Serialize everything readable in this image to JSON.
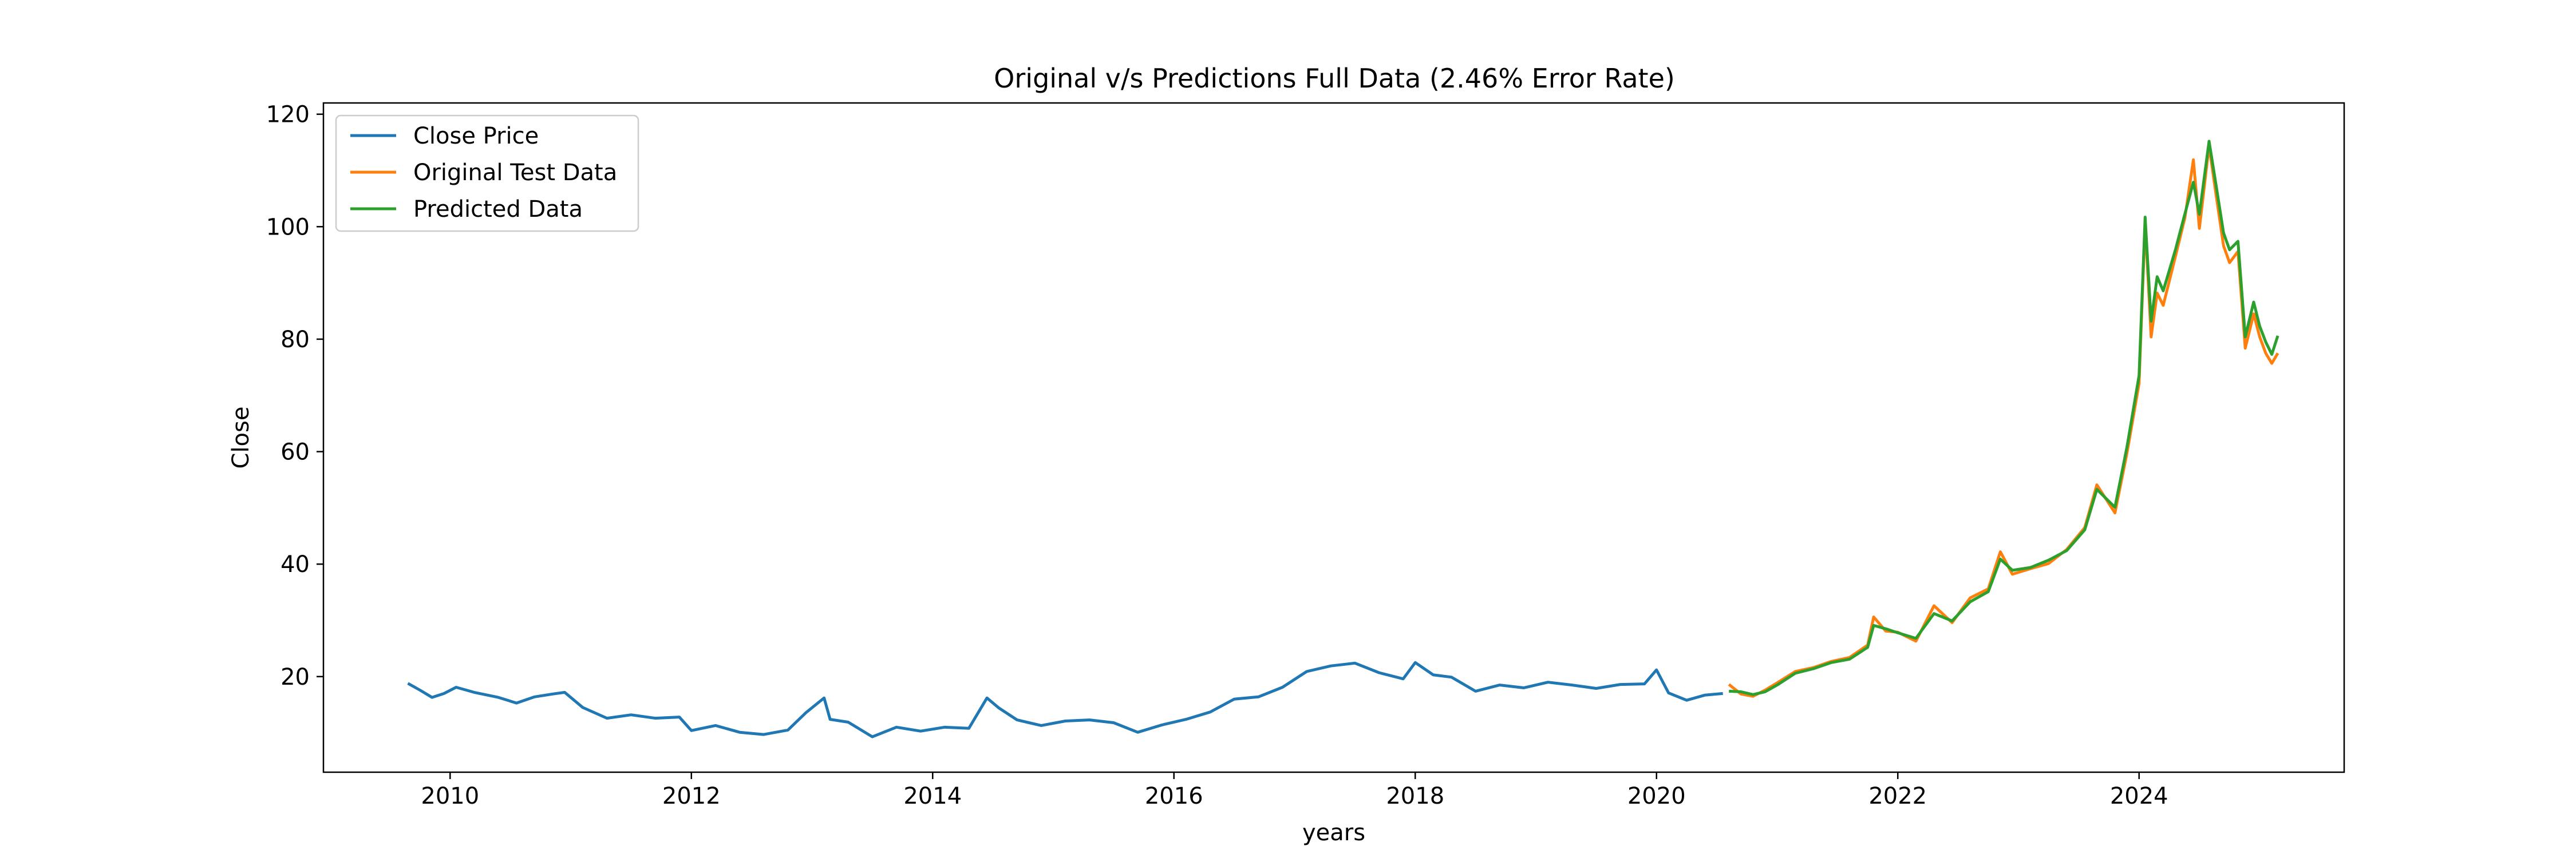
{
  "chart_data": {
    "type": "line",
    "title": "Original v/s Predictions Full Data (2.46% Error Rate)",
    "xlabel": "years",
    "ylabel": "Close",
    "xlim": [
      2008.95,
      2025.7
    ],
    "ylim": [
      3,
      122
    ],
    "x_ticks": [
      2010,
      2012,
      2014,
      2016,
      2018,
      2020,
      2022,
      2024
    ],
    "y_ticks": [
      20,
      40,
      60,
      80,
      100,
      120
    ],
    "grid": false,
    "legend_position": "top-left",
    "series": [
      {
        "name": "Close Price",
        "color": "#1f77b4",
        "points": [
          [
            2009.65,
            18.8
          ],
          [
            2009.75,
            17.6
          ],
          [
            2009.85,
            16.3
          ],
          [
            2009.95,
            17.0
          ],
          [
            2010.05,
            18.1
          ],
          [
            2010.2,
            17.2
          ],
          [
            2010.4,
            16.3
          ],
          [
            2010.55,
            15.3
          ],
          [
            2010.7,
            16.4
          ],
          [
            2010.85,
            16.9
          ],
          [
            2010.95,
            17.2
          ],
          [
            2011.1,
            14.5
          ],
          [
            2011.3,
            12.6
          ],
          [
            2011.5,
            13.2
          ],
          [
            2011.7,
            12.6
          ],
          [
            2011.9,
            12.8
          ],
          [
            2012.0,
            10.4
          ],
          [
            2012.2,
            11.3
          ],
          [
            2012.4,
            10.1
          ],
          [
            2012.6,
            9.7
          ],
          [
            2012.8,
            10.5
          ],
          [
            2012.95,
            13.6
          ],
          [
            2013.1,
            16.2
          ],
          [
            2013.15,
            12.4
          ],
          [
            2013.3,
            11.9
          ],
          [
            2013.5,
            9.3
          ],
          [
            2013.7,
            11.0
          ],
          [
            2013.9,
            10.3
          ],
          [
            2014.1,
            11.0
          ],
          [
            2014.3,
            10.8
          ],
          [
            2014.45,
            16.2
          ],
          [
            2014.55,
            14.4
          ],
          [
            2014.7,
            12.3
          ],
          [
            2014.9,
            11.3
          ],
          [
            2015.1,
            12.1
          ],
          [
            2015.3,
            12.3
          ],
          [
            2015.5,
            11.8
          ],
          [
            2015.7,
            10.1
          ],
          [
            2015.9,
            11.4
          ],
          [
            2016.1,
            12.4
          ],
          [
            2016.3,
            13.7
          ],
          [
            2016.5,
            16.0
          ],
          [
            2016.7,
            16.4
          ],
          [
            2016.9,
            18.1
          ],
          [
            2017.1,
            20.9
          ],
          [
            2017.3,
            21.9
          ],
          [
            2017.5,
            22.4
          ],
          [
            2017.7,
            20.7
          ],
          [
            2017.9,
            19.6
          ],
          [
            2018.0,
            22.5
          ],
          [
            2018.15,
            20.3
          ],
          [
            2018.3,
            19.9
          ],
          [
            2018.5,
            17.4
          ],
          [
            2018.7,
            18.5
          ],
          [
            2018.9,
            18.0
          ],
          [
            2019.1,
            19.0
          ],
          [
            2019.3,
            18.5
          ],
          [
            2019.5,
            17.9
          ],
          [
            2019.7,
            18.6
          ],
          [
            2019.9,
            18.7
          ],
          [
            2020.0,
            21.2
          ],
          [
            2020.1,
            17.1
          ],
          [
            2020.25,
            15.8
          ],
          [
            2020.4,
            16.7
          ],
          [
            2020.55,
            17.0
          ]
        ]
      },
      {
        "name": "Original Test Data",
        "color": "#ff7f0e",
        "points": [
          [
            2020.6,
            18.6
          ],
          [
            2020.7,
            16.9
          ],
          [
            2020.8,
            16.5
          ],
          [
            2020.9,
            17.6
          ],
          [
            2021.0,
            18.9
          ],
          [
            2021.15,
            20.9
          ],
          [
            2021.3,
            21.6
          ],
          [
            2021.45,
            22.7
          ],
          [
            2021.6,
            23.4
          ],
          [
            2021.75,
            25.6
          ],
          [
            2021.8,
            30.6
          ],
          [
            2021.9,
            28.1
          ],
          [
            2022.0,
            27.9
          ],
          [
            2022.15,
            26.3
          ],
          [
            2022.3,
            32.6
          ],
          [
            2022.45,
            29.6
          ],
          [
            2022.6,
            34.0
          ],
          [
            2022.75,
            35.6
          ],
          [
            2022.85,
            42.2
          ],
          [
            2022.95,
            38.2
          ],
          [
            2023.1,
            39.2
          ],
          [
            2023.25,
            40.1
          ],
          [
            2023.4,
            42.6
          ],
          [
            2023.55,
            46.5
          ],
          [
            2023.65,
            54.1
          ],
          [
            2023.8,
            49.1
          ],
          [
            2023.9,
            59.8
          ],
          [
            2024.0,
            72.1
          ],
          [
            2024.05,
            100.7
          ],
          [
            2024.1,
            80.4
          ],
          [
            2024.15,
            88.2
          ],
          [
            2024.2,
            86.0
          ],
          [
            2024.3,
            94.6
          ],
          [
            2024.38,
            101.6
          ],
          [
            2024.45,
            111.9
          ],
          [
            2024.5,
            99.7
          ],
          [
            2024.58,
            114.4
          ],
          [
            2024.63,
            106.9
          ],
          [
            2024.7,
            96.6
          ],
          [
            2024.75,
            93.6
          ],
          [
            2024.82,
            95.6
          ],
          [
            2024.88,
            78.4
          ],
          [
            2024.95,
            84.5
          ],
          [
            2025.0,
            80.4
          ],
          [
            2025.05,
            77.5
          ],
          [
            2025.1,
            75.7
          ],
          [
            2025.15,
            77.5
          ]
        ]
      },
      {
        "name": "Predicted Data",
        "color": "#2ca02c",
        "points": [
          [
            2020.6,
            17.4
          ],
          [
            2020.7,
            17.3
          ],
          [
            2020.8,
            16.8
          ],
          [
            2020.9,
            17.3
          ],
          [
            2021.0,
            18.5
          ],
          [
            2021.15,
            20.6
          ],
          [
            2021.3,
            21.4
          ],
          [
            2021.45,
            22.5
          ],
          [
            2021.6,
            23.1
          ],
          [
            2021.75,
            25.2
          ],
          [
            2021.8,
            29.1
          ],
          [
            2021.9,
            28.5
          ],
          [
            2022.0,
            27.8
          ],
          [
            2022.15,
            26.8
          ],
          [
            2022.3,
            31.2
          ],
          [
            2022.45,
            29.9
          ],
          [
            2022.6,
            33.3
          ],
          [
            2022.75,
            35.1
          ],
          [
            2022.85,
            40.9
          ],
          [
            2022.95,
            38.9
          ],
          [
            2023.1,
            39.4
          ],
          [
            2023.25,
            40.7
          ],
          [
            2023.4,
            42.4
          ],
          [
            2023.55,
            46.1
          ],
          [
            2023.65,
            53.3
          ],
          [
            2023.8,
            50.1
          ],
          [
            2023.9,
            60.9
          ],
          [
            2024.0,
            73.5
          ],
          [
            2024.05,
            101.7
          ],
          [
            2024.1,
            83.2
          ],
          [
            2024.15,
            91.1
          ],
          [
            2024.2,
            88.6
          ],
          [
            2024.3,
            95.8
          ],
          [
            2024.38,
            102.3
          ],
          [
            2024.45,
            107.9
          ],
          [
            2024.5,
            102.2
          ],
          [
            2024.58,
            115.2
          ],
          [
            2024.63,
            108.5
          ],
          [
            2024.7,
            98.9
          ],
          [
            2024.75,
            95.9
          ],
          [
            2024.82,
            97.4
          ],
          [
            2024.88,
            80.4
          ],
          [
            2024.95,
            86.6
          ],
          [
            2025.0,
            82.3
          ],
          [
            2025.05,
            79.5
          ],
          [
            2025.1,
            77.3
          ],
          [
            2025.15,
            80.6
          ]
        ]
      }
    ]
  }
}
